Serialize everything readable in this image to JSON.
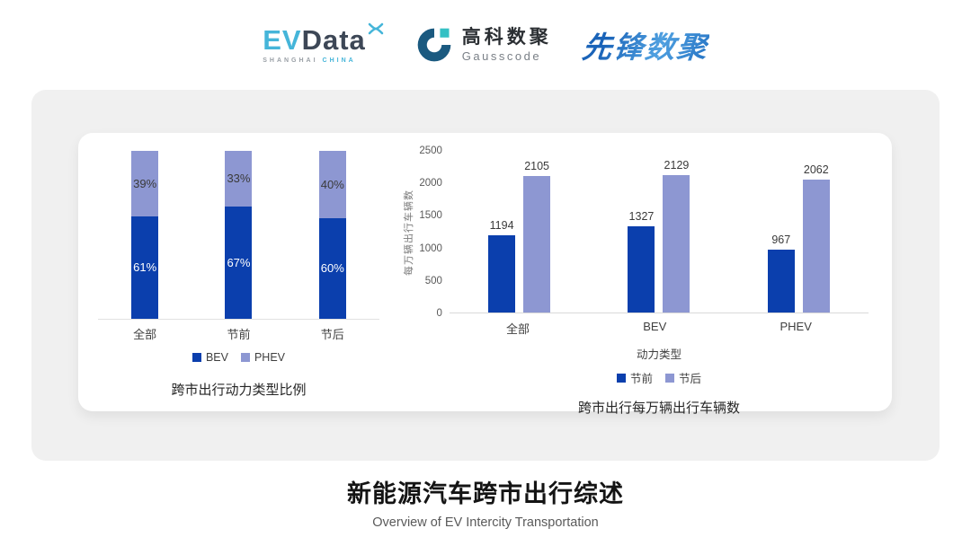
{
  "header": {
    "logos": {
      "evdata": {
        "ev": "EV",
        "data": "Data",
        "tagline_left": "SHANGHAI",
        "tagline_right": "CHINA",
        "accent_color": "#45b5d9",
        "dark_color": "#3d4756"
      },
      "gausscode": {
        "cn": "高科数聚",
        "en": "Gausscode",
        "icon_color": "#1b5a80",
        "icon_accent": "#35c0c4"
      },
      "xianfeng": {
        "text": "先锋数聚",
        "color": "#2e7fd0"
      }
    }
  },
  "palette": {
    "primary_blue": "#0b3fad",
    "periwinkle": "#8d97d2",
    "card_gray": "#f0f0f0"
  },
  "chart_data": [
    {
      "type": "bar",
      "variant": "stacked-percent",
      "title": "跨市出行动力类型比例",
      "categories": [
        "全部",
        "节前",
        "节后"
      ],
      "series": [
        {
          "name": "BEV",
          "values": [
            61,
            67,
            60
          ],
          "labels": [
            "61%",
            "67%",
            "60%"
          ],
          "color": "#0b3fad",
          "label_color": "#ffffff"
        },
        {
          "name": "PHEV",
          "values": [
            39,
            33,
            40
          ],
          "labels": [
            "39%",
            "33%",
            "40%"
          ],
          "color": "#8d97d2",
          "label_color": "#3a3a3a"
        }
      ],
      "ylim": [
        0,
        100
      ],
      "grid": false,
      "legend_position": "bottom"
    },
    {
      "type": "bar",
      "variant": "grouped",
      "title": "跨市出行每万辆出行车辆数",
      "categories": [
        "全部",
        "BEV",
        "PHEV"
      ],
      "xlabel": "动力类型",
      "ylabel": "每万辆出行车辆数",
      "series": [
        {
          "name": "节前",
          "values": [
            1194,
            1327,
            967
          ],
          "color": "#0b3fad"
        },
        {
          "name": "节后",
          "values": [
            2105,
            2129,
            2062
          ],
          "color": "#8d97d2"
        }
      ],
      "ylim": [
        0,
        2500
      ],
      "yticks": [
        0,
        500,
        1000,
        1500,
        2000,
        2500
      ],
      "grid": false,
      "legend_position": "bottom"
    }
  ],
  "footer": {
    "title": "新能源汽车跨市出行综述",
    "subtitle": "Overview of EV Intercity Transportation"
  }
}
